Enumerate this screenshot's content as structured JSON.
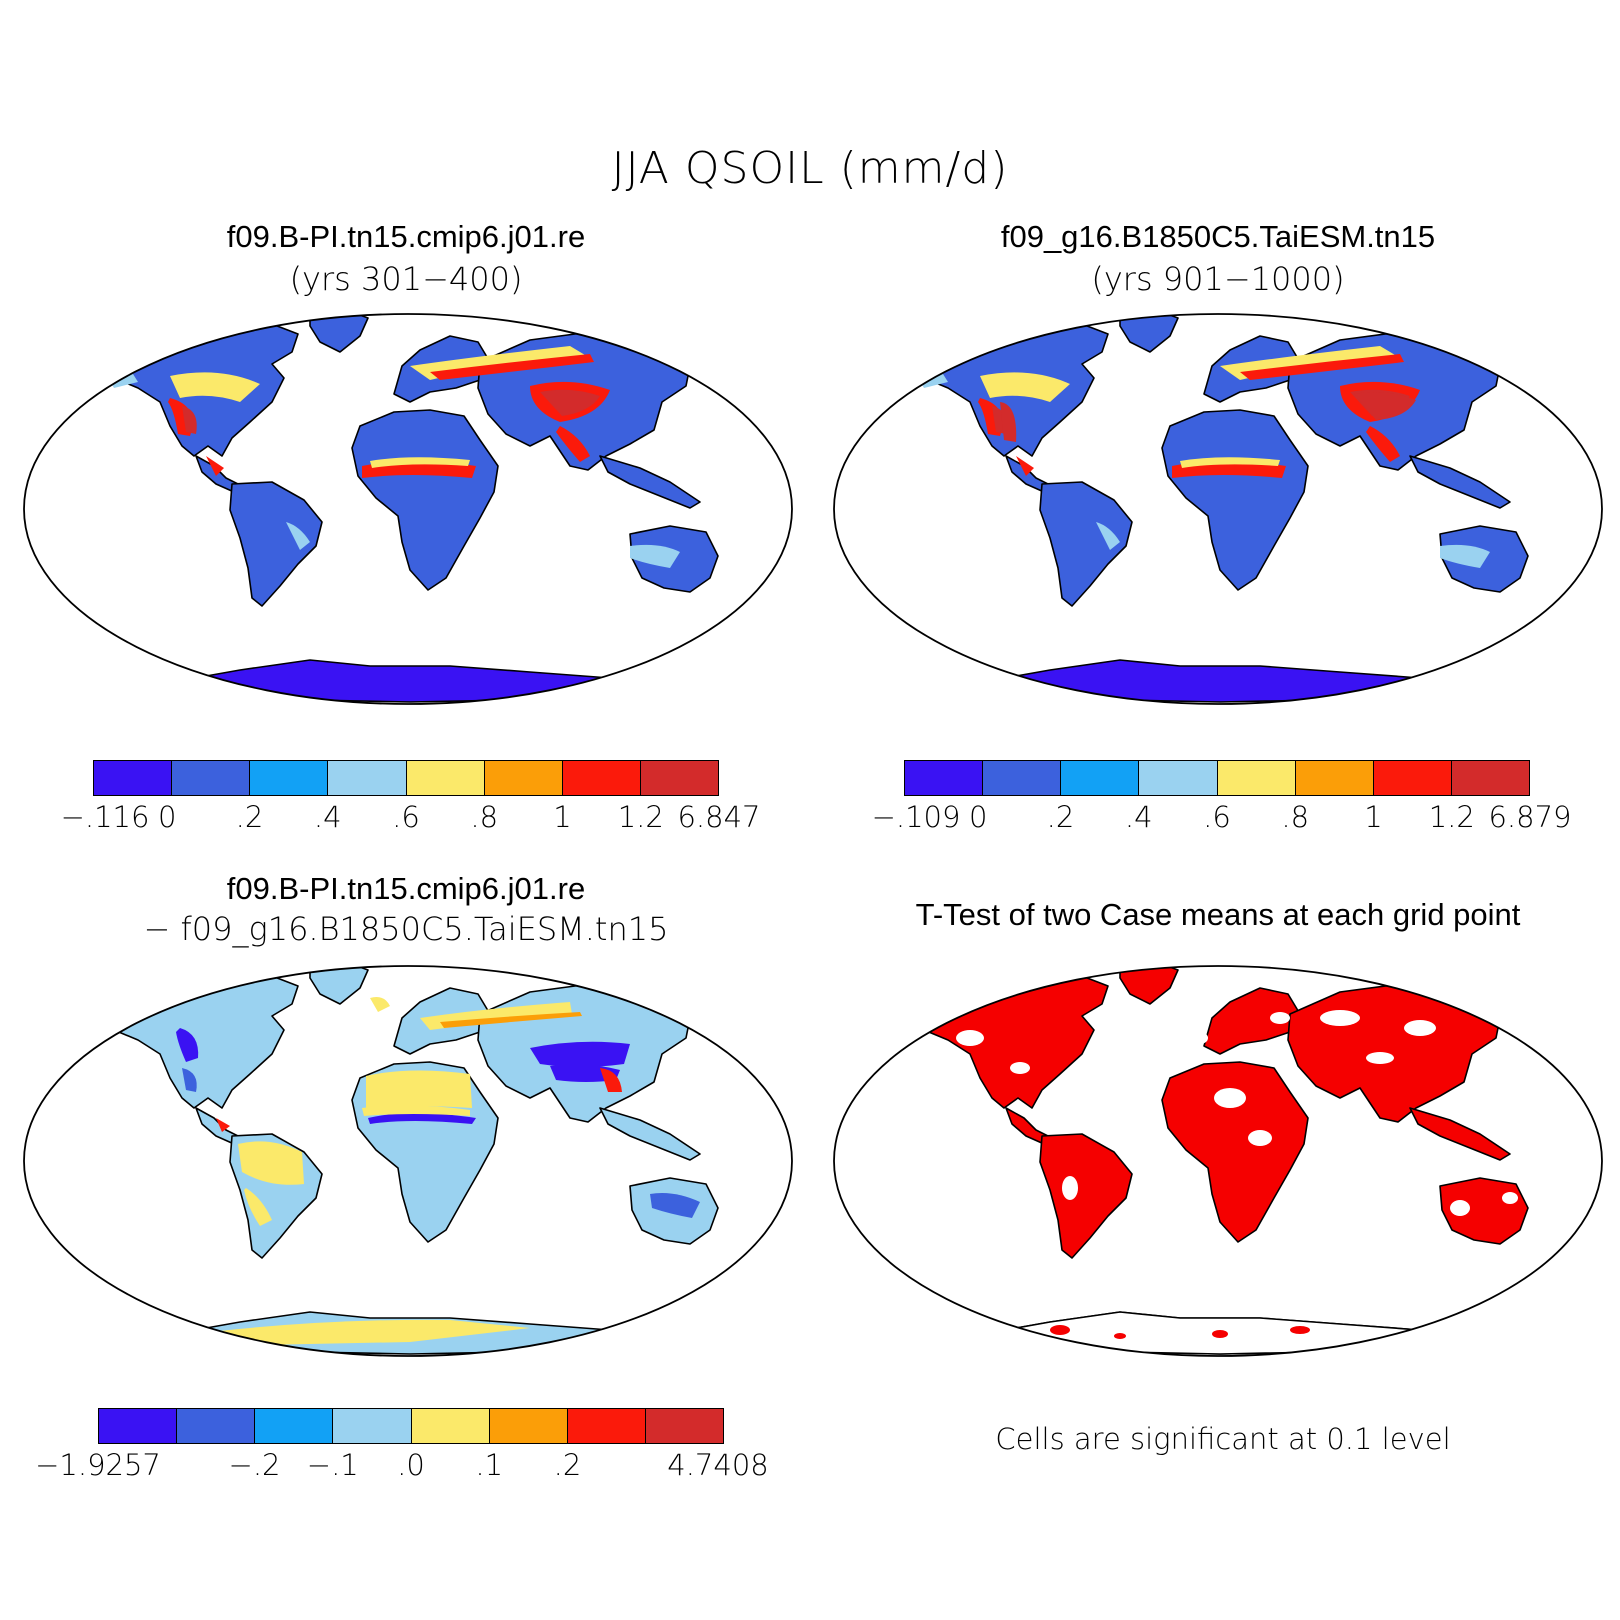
{
  "title": "JJA QSOIL (mm/d)",
  "palette": [
    "#3a12f3",
    "#3c61dd",
    "#12a1f5",
    "#9ad2f0",
    "#fbe96a",
    "#fb9e08",
    "#fb1a0b",
    "#d32b2b"
  ],
  "land_fill": {
    "case1": "#3c61dd",
    "case2": "#3c61dd",
    "diff": "#9ad2f0",
    "ttest": "#f50000"
  },
  "panels": {
    "case1": {
      "title": "f09.B-PI.tn15.cmip6.j01.re",
      "subtitle": "(yrs 301−400)",
      "colorbar_labels": [
        "−.116",
        "0",
        ".2",
        ".4",
        ".6",
        ".8",
        "1",
        "1.2",
        "6.847"
      ]
    },
    "case2": {
      "title": "f09_g16.B1850C5.TaiESM.tn15",
      "subtitle": "(yrs 901−1000)",
      "colorbar_labels": [
        "−.109",
        "0",
        ".2",
        ".4",
        ".6",
        ".8",
        "1",
        "1.2",
        "6.879"
      ]
    },
    "diff": {
      "title": "f09.B-PI.tn15.cmip6.j01.re",
      "subtitle": "− f09_g16.B1850C5.TaiESM.tn15",
      "colorbar_labels": [
        "−1.9257",
        "−.2",
        "−.1",
        ".0",
        ".1",
        ".2",
        "4.7408"
      ]
    },
    "ttest": {
      "title": "T-Test of two Case means at each grid point",
      "note": "Cells are significant at 0.1 level"
    }
  }
}
